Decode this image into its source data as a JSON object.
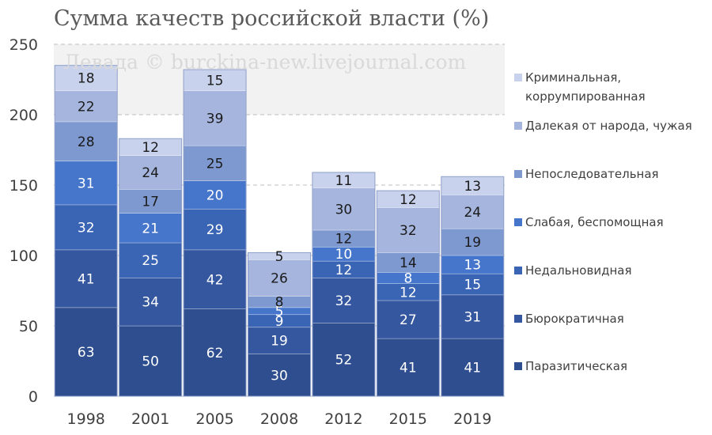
{
  "chart_data": {
    "type": "bar",
    "stacked": true,
    "title": "Сумма качеств  российской власти (%)",
    "watermark": "Левада © burckina-new.livejournal.com",
    "xlabel": "",
    "ylabel": "",
    "ylim": [
      0,
      250
    ],
    "yticks": [
      0,
      50,
      100,
      150,
      200,
      250
    ],
    "grid": true,
    "legend_position": "right",
    "categories": [
      "1998",
      "2001",
      "2005",
      "2008",
      "2012",
      "2015",
      "2019"
    ],
    "series": [
      {
        "name": "Паразитическая",
        "color": "#2f4e8f",
        "label_color": "#ffffff",
        "values": [
          63,
          50,
          62,
          30,
          52,
          41,
          41
        ]
      },
      {
        "name": "Бюрократичная",
        "color": "#34579f",
        "label_color": "#ffffff",
        "values": [
          41,
          34,
          42,
          19,
          32,
          27,
          31
        ]
      },
      {
        "name": "Недальновидная",
        "color": "#3a64b4",
        "label_color": "#ffffff",
        "values": [
          32,
          25,
          29,
          9,
          12,
          12,
          15
        ]
      },
      {
        "name": "Слабая, беспомощная",
        "color": "#4676cc",
        "label_color": "#ffffff",
        "values": [
          31,
          21,
          20,
          5,
          10,
          8,
          13
        ]
      },
      {
        "name": "Непоследовательная",
        "color": "#7e98d0",
        "label_color": "#1a1a1a",
        "values": [
          28,
          17,
          25,
          8,
          12,
          14,
          19
        ]
      },
      {
        "name": "Далекая от народа, чужая",
        "color": "#a6b5dd",
        "label_color": "#1a1a1a",
        "values": [
          22,
          24,
          39,
          26,
          30,
          32,
          24
        ]
      },
      {
        "name": "Криминальная, коррумпированная",
        "color": "#c9d2ec",
        "label_color": "#1a1a1a",
        "values": [
          18,
          12,
          15,
          5,
          11,
          12,
          13
        ]
      }
    ]
  }
}
